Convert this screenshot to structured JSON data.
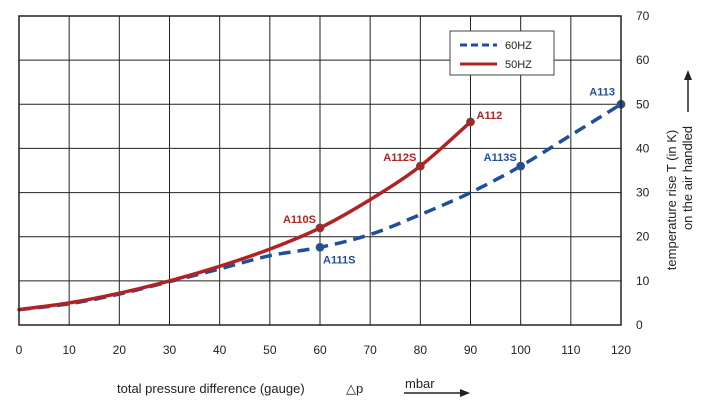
{
  "chart_data": {
    "type": "line",
    "x_ticks": [
      "0",
      "10",
      "20",
      "30",
      "40",
      "50",
      "60",
      "70",
      "80",
      "90",
      "100",
      "110",
      "120"
    ],
    "y_ticks": [
      "0",
      "10",
      "20",
      "30",
      "40",
      "50",
      "60",
      "70"
    ],
    "xlim": [
      0,
      120
    ],
    "ylim": [
      0,
      70
    ],
    "grid": true,
    "legend_position": "top-right",
    "xlabel": "total pressure difference (gauge)",
    "xlabel_symbol": "△p",
    "xlabel_unit": "mbar",
    "ylabel_line1": "temperature rise T (in K)",
    "ylabel_line2": "on the air handled",
    "series": [
      {
        "name": "60HZ",
        "color": "#1f4e9c",
        "style": "dashed",
        "x": [
          0,
          10,
          20,
          30,
          40,
          50,
          60,
          70,
          80,
          90,
          100,
          110,
          120
        ],
        "y": [
          3.5,
          4.8,
          7.0,
          9.8,
          12.7,
          15.7,
          17.6,
          20.5,
          25,
          30,
          36,
          43,
          50
        ]
      },
      {
        "name": "50HZ",
        "color": "#b22222",
        "style": "solid",
        "x": [
          0,
          10,
          20,
          30,
          40,
          50,
          60,
          70,
          80,
          90
        ],
        "y": [
          3.5,
          5.0,
          7.2,
          10,
          13.3,
          17.2,
          22,
          28.4,
          36,
          46
        ]
      }
    ],
    "points": [
      {
        "label": "A110S",
        "x": 60,
        "y": 22,
        "color": "#b22222"
      },
      {
        "label": "A112S",
        "x": 80,
        "y": 36,
        "color": "#b22222"
      },
      {
        "label": "A112",
        "x": 90,
        "y": 46,
        "color": "#b22222"
      },
      {
        "label": "A111S",
        "x": 60,
        "y": 17.6,
        "color": "#1f4e9c"
      },
      {
        "label": "A113S",
        "x": 100,
        "y": 36,
        "color": "#1f4e9c"
      },
      {
        "label": "A113",
        "x": 120,
        "y": 50,
        "color": "#1f4e9c"
      }
    ]
  }
}
